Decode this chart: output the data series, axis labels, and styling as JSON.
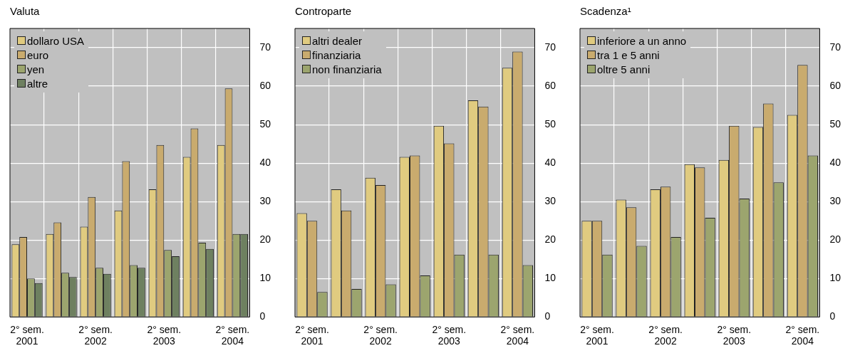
{
  "chart_data": [
    {
      "type": "bar",
      "title": "Valuta",
      "categories": [
        "2° sem. 2001",
        null,
        "2° sem. 2002",
        null,
        "2° sem. 2003",
        null,
        "2° sem. 2004"
      ],
      "series": [
        {
          "name": "dollaro USA",
          "color": "#e0cb80",
          "values": [
            18.9,
            21.6,
            23.5,
            27.7,
            33.2,
            41.6,
            44.7
          ]
        },
        {
          "name": "euro",
          "color": "#c9ab6e",
          "values": [
            20.8,
            24.6,
            31.2,
            40.5,
            44.7,
            49,
            59.4
          ]
        },
        {
          "name": "yen",
          "color": "#9ca56e",
          "values": [
            10,
            11.5,
            12.8,
            13.5,
            17.4,
            19.3,
            21.6
          ]
        },
        {
          "name": "altre",
          "color": "#6e8060",
          "values": [
            8.8,
            10.4,
            11.2,
            12.8,
            15.8,
            17.7,
            21.6
          ]
        }
      ],
      "ylim": [
        0,
        75
      ],
      "yticks": [
        0,
        10,
        20,
        30,
        40,
        50,
        60,
        70
      ],
      "grid": true,
      "legend": "top left"
    },
    {
      "type": "bar",
      "title": "Controparte",
      "categories": [
        "2° sem. 2001",
        null,
        "2° sem. 2002",
        null,
        "2° sem. 2003",
        null,
        "2° sem. 2004"
      ],
      "series": [
        {
          "name": "altri dealer",
          "color": "#e0cb80",
          "values": [
            27,
            33.2,
            36.2,
            41.6,
            49.7,
            56.3,
            64.8
          ]
        },
        {
          "name": "finanziaria",
          "color": "#c9ab6e",
          "values": [
            25,
            27.7,
            34.3,
            42,
            45.1,
            54.7,
            69
          ]
        },
        {
          "name": "non finanziaria",
          "color": "#9ca56e",
          "values": [
            6.5,
            7.3,
            8.5,
            10.8,
            16.2,
            16.2,
            13.5
          ]
        }
      ],
      "ylim": [
        0,
        75
      ],
      "yticks": [
        0,
        10,
        20,
        30,
        40,
        50,
        60,
        70
      ],
      "grid": true,
      "legend": "top left"
    },
    {
      "type": "bar",
      "title": "Scadenza¹",
      "categories": [
        "2° sem. 2001",
        null,
        "2° sem. 2002",
        null,
        "2° sem. 2003",
        null,
        "2° sem. 2004"
      ],
      "series": [
        {
          "name": "inferiore a un anno",
          "color": "#e0cb80",
          "values": [
            25,
            30.5,
            33.2,
            39.7,
            40.8,
            49.4,
            52.5
          ]
        },
        {
          "name": "tra 1 e 5 anni",
          "color": "#c9ab6e",
          "values": [
            25,
            28.5,
            33.9,
            38.9,
            49.7,
            55.5,
            65.5
          ]
        },
        {
          "name": "oltre 5 anni",
          "color": "#9ca56e",
          "values": [
            16.2,
            18.5,
            20.8,
            25.8,
            30.8,
            35,
            42
          ]
        }
      ],
      "ylim": [
        0,
        75
      ],
      "yticks": [
        0,
        10,
        20,
        30,
        40,
        50,
        60,
        70
      ],
      "grid": true,
      "legend": "top left"
    }
  ]
}
